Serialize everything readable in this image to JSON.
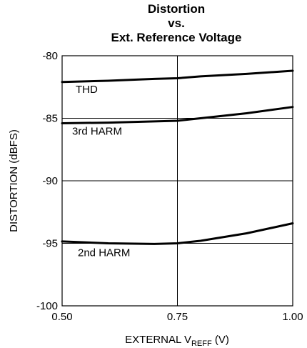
{
  "chart_data": {
    "type": "line",
    "title_lines": [
      "Distortion",
      "vs.",
      "Ext. Reference Voltage"
    ],
    "xlabel": {
      "main": "EXTERNAL V",
      "subscript": "REFF",
      "unit": " (V)"
    },
    "ylabel": "DISTORTION (dBFS)",
    "xlim": [
      0.5,
      1.0
    ],
    "ylim": [
      -100,
      -80
    ],
    "x_ticks": [
      "0.50",
      "0.75",
      "1.00"
    ],
    "y_ticks": [
      "-80",
      "-85",
      "-90",
      "-95",
      "-100"
    ],
    "grid": true,
    "series": [
      {
        "name": "THD",
        "color": "#000000",
        "points": [
          [
            0.5,
            -82.1
          ],
          [
            0.6,
            -82.0
          ],
          [
            0.7,
            -81.85
          ],
          [
            0.75,
            -81.8
          ],
          [
            0.8,
            -81.65
          ],
          [
            0.9,
            -81.45
          ],
          [
            1.0,
            -81.2
          ]
        ]
      },
      {
        "name": "3rd HARM",
        "color": "#000000",
        "points": [
          [
            0.5,
            -85.4
          ],
          [
            0.6,
            -85.35
          ],
          [
            0.7,
            -85.25
          ],
          [
            0.75,
            -85.2
          ],
          [
            0.8,
            -85.0
          ],
          [
            0.9,
            -84.6
          ],
          [
            1.0,
            -84.1
          ]
        ]
      },
      {
        "name": "2nd HARM",
        "color": "#000000",
        "points": [
          [
            0.5,
            -94.85
          ],
          [
            0.6,
            -95.0
          ],
          [
            0.7,
            -95.05
          ],
          [
            0.75,
            -95.0
          ],
          [
            0.8,
            -94.8
          ],
          [
            0.9,
            -94.2
          ],
          [
            1.0,
            -93.4
          ]
        ]
      }
    ]
  }
}
